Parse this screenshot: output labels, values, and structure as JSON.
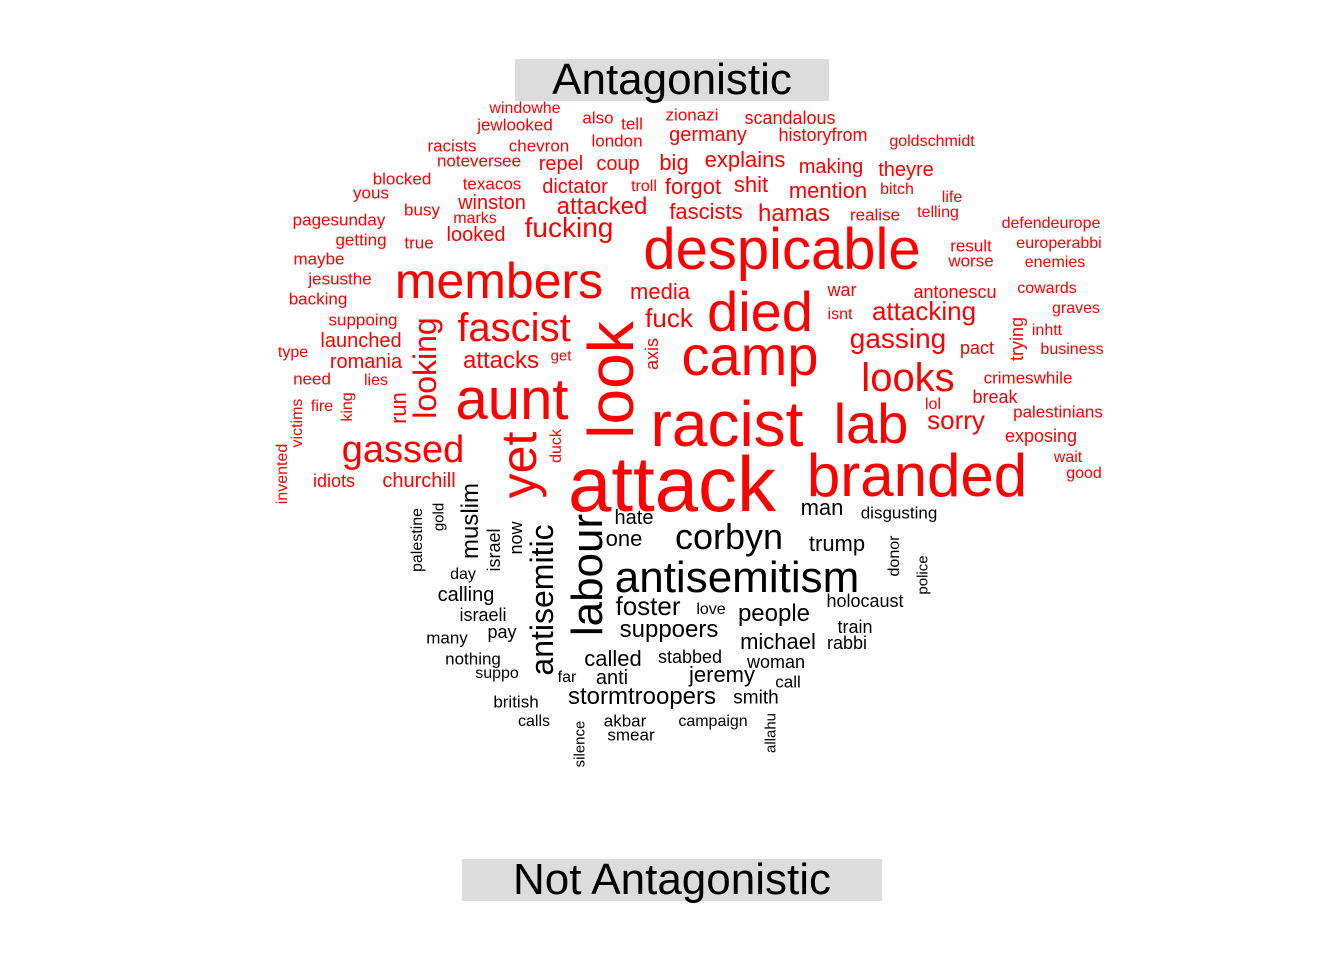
{
  "labels": {
    "top": "Antagonistic",
    "bottom": "Not Antagonistic"
  },
  "colors": {
    "antagonistic": "#ff0000",
    "not_antagonistic": "#000000",
    "label_bg": "#dcdcdc"
  },
  "cloud": {
    "antagonistic": [
      {
        "t": "attack",
        "w": 10
      },
      {
        "t": "racist",
        "w": 8.6
      },
      {
        "t": "despicable",
        "w": 7.4
      },
      {
        "t": "look",
        "w": 8.2
      },
      {
        "t": "camp",
        "w": 7.6
      },
      {
        "t": "aunt",
        "w": 7.8
      },
      {
        "t": "branded",
        "w": 8.0
      },
      {
        "t": "died",
        "w": 7.4
      },
      {
        "t": "lab",
        "w": 7.4
      },
      {
        "t": "members",
        "w": 6.4
      },
      {
        "t": "yet",
        "w": 6.4
      },
      {
        "t": "fascist",
        "w": 5.2
      },
      {
        "t": "looks",
        "w": 5.2
      },
      {
        "t": "gassed",
        "w": 5.0
      },
      {
        "t": "looking",
        "w": 4.0
      },
      {
        "t": "gassing",
        "w": 3.8
      },
      {
        "t": "attacking",
        "w": 3.4
      },
      {
        "t": "fucking",
        "w": 3.6
      },
      {
        "t": "sorry",
        "w": 3.6
      },
      {
        "t": "fuck",
        "w": 3.4
      },
      {
        "t": "media",
        "w": 3.2
      },
      {
        "t": "attacks",
        "w": 3.2
      },
      {
        "t": "hamas",
        "w": 3.2
      },
      {
        "t": "attacked",
        "w": 3.2
      },
      {
        "t": "fascists",
        "w": 3.1
      },
      {
        "t": "run",
        "w": 3.0
      },
      {
        "t": "forgot",
        "w": 3.0
      },
      {
        "t": "explains",
        "w": 3.0
      },
      {
        "t": "mention",
        "w": 3.0
      },
      {
        "t": "dictator",
        "w": 2.9
      },
      {
        "t": "repel",
        "w": 2.9
      },
      {
        "t": "coup",
        "w": 2.9
      },
      {
        "t": "big",
        "w": 2.9
      },
      {
        "t": "shit",
        "w": 2.9
      },
      {
        "t": "winston",
        "w": 2.8
      },
      {
        "t": "germany",
        "w": 2.8
      },
      {
        "t": "making",
        "w": 2.8
      },
      {
        "t": "theyre",
        "w": 2.6
      },
      {
        "t": "launched",
        "w": 2.8
      },
      {
        "t": "romania",
        "w": 2.8
      },
      {
        "t": "churchill",
        "w": 2.8
      },
      {
        "t": "looked",
        "w": 2.8
      },
      {
        "t": "antonescu",
        "w": 2.6
      },
      {
        "t": "war",
        "w": 2.6
      },
      {
        "t": "axis",
        "w": 2.4
      },
      {
        "t": "scandalous",
        "w": 2.6
      },
      {
        "t": "zionazi",
        "w": 2.4
      },
      {
        "t": "historyfrom",
        "w": 2.4
      },
      {
        "t": "also",
        "w": 2.4
      },
      {
        "t": "tell",
        "w": 2.4
      },
      {
        "t": "london",
        "w": 2.6
      },
      {
        "t": "chevron",
        "w": 2.6
      },
      {
        "t": "jewlooked",
        "w": 2.4
      },
      {
        "t": "windowhe",
        "w": 2.4
      },
      {
        "t": "racists",
        "w": 2.4
      },
      {
        "t": "noteversee",
        "w": 2.4
      },
      {
        "t": "texacos",
        "w": 2.4
      },
      {
        "t": "troll",
        "w": 2.2
      },
      {
        "t": "bitch",
        "w": 2.2
      },
      {
        "t": "realise",
        "w": 2.4
      },
      {
        "t": "telling",
        "w": 2.2
      },
      {
        "t": "life",
        "w": 2.2
      },
      {
        "t": "goldschmidt",
        "w": 2.2
      },
      {
        "t": "blocked",
        "w": 2.4
      },
      {
        "t": "yous",
        "w": 2.4
      },
      {
        "t": "busy",
        "w": 2.4
      },
      {
        "t": "marks",
        "w": 2.2
      },
      {
        "t": "pagesunday",
        "w": 2.4
      },
      {
        "t": "getting",
        "w": 2.4
      },
      {
        "t": "true",
        "w": 2.4
      },
      {
        "t": "maybe",
        "w": 2.4
      },
      {
        "t": "jesusthe",
        "w": 2.4
      },
      {
        "t": "backing",
        "w": 2.4
      },
      {
        "t": "suppoing",
        "w": 2.4
      },
      {
        "t": "type",
        "w": 2.2
      },
      {
        "t": "need",
        "w": 2.4
      },
      {
        "t": "lies",
        "w": 2.2
      },
      {
        "t": "fire",
        "w": 2.2
      },
      {
        "t": "king",
        "w": 2.2
      },
      {
        "t": "victims",
        "w": 2.2
      },
      {
        "t": "invented",
        "w": 2.2
      },
      {
        "t": "idiots",
        "w": 2.6
      },
      {
        "t": "duck",
        "w": 2.2
      },
      {
        "t": "get",
        "w": 2.2
      },
      {
        "t": "isnt",
        "w": 2.2
      },
      {
        "t": "pact",
        "w": 2.6
      },
      {
        "t": "trying",
        "w": 2.4
      },
      {
        "t": "crimeswhile",
        "w": 2.4
      },
      {
        "t": "break",
        "w": 2.4
      },
      {
        "t": "lol",
        "w": 2.2
      },
      {
        "t": "palestinians",
        "w": 2.4
      },
      {
        "t": "exposing",
        "w": 2.4
      },
      {
        "t": "wait",
        "w": 2.2
      },
      {
        "t": "good",
        "w": 2.2
      },
      {
        "t": "result",
        "w": 2.4
      },
      {
        "t": "worse",
        "w": 2.4
      },
      {
        "t": "defendeurope",
        "w": 2.2
      },
      {
        "t": "europerabbi",
        "w": 2.2
      },
      {
        "t": "enemies",
        "w": 2.2
      },
      {
        "t": "cowards",
        "w": 2.2
      },
      {
        "t": "graves",
        "w": 2.2
      },
      {
        "t": "inhtt",
        "w": 2.2
      },
      {
        "t": "business",
        "w": 2.2
      }
    ],
    "not_antagonistic": [
      {
        "t": "antisemitism",
        "w": 5.4
      },
      {
        "t": "corbyn",
        "w": 4.8
      },
      {
        "t": "labour",
        "w": 4.8
      },
      {
        "t": "antisemitic",
        "w": 3.8
      },
      {
        "t": "muslim",
        "w": 3.0
      },
      {
        "t": "foster",
        "w": 3.2
      },
      {
        "t": "suppoers",
        "w": 3.2
      },
      {
        "t": "trump",
        "w": 2.9
      },
      {
        "t": "man",
        "w": 2.8
      },
      {
        "t": "people",
        "w": 3.0
      },
      {
        "t": "michael",
        "w": 2.8
      },
      {
        "t": "called",
        "w": 2.8
      },
      {
        "t": "jeremy",
        "w": 2.8
      },
      {
        "t": "stormtroopers",
        "w": 3.0
      },
      {
        "t": "one",
        "w": 2.8
      },
      {
        "t": "hate",
        "w": 2.6
      },
      {
        "t": "israel",
        "w": 2.6
      },
      {
        "t": "now",
        "w": 2.4
      },
      {
        "t": "calling",
        "w": 2.6
      },
      {
        "t": "israeli",
        "w": 2.4
      },
      {
        "t": "pay",
        "w": 2.4
      },
      {
        "t": "many",
        "w": 2.2
      },
      {
        "t": "nothing",
        "w": 2.2
      },
      {
        "t": "suppo",
        "w": 2.2
      },
      {
        "t": "far",
        "w": 2.2
      },
      {
        "t": "anti",
        "w": 2.4
      },
      {
        "t": "british",
        "w": 2.2
      },
      {
        "t": "calls",
        "w": 2.2
      },
      {
        "t": "silence",
        "w": 2.0
      },
      {
        "t": "akbar",
        "w": 2.2
      },
      {
        "t": "smear",
        "w": 2.2
      },
      {
        "t": "campaign",
        "w": 2.2
      },
      {
        "t": "allahu",
        "w": 2.0
      },
      {
        "t": "smith",
        "w": 2.4
      },
      {
        "t": "call",
        "w": 2.2
      },
      {
        "t": "woman",
        "w": 2.4
      },
      {
        "t": "stabbed",
        "w": 2.4
      },
      {
        "t": "rabbi",
        "w": 2.4
      },
      {
        "t": "train",
        "w": 2.4
      },
      {
        "t": "holocaust",
        "w": 2.4
      },
      {
        "t": "love",
        "w": 2.2
      },
      {
        "t": "donor",
        "w": 2.2
      },
      {
        "t": "police",
        "w": 2.0
      },
      {
        "t": "disgusting",
        "w": 2.2
      },
      {
        "t": "day",
        "w": 2.2
      },
      {
        "t": "palestine",
        "w": 2.2
      },
      {
        "t": "gold",
        "w": 2.0
      }
    ]
  }
}
